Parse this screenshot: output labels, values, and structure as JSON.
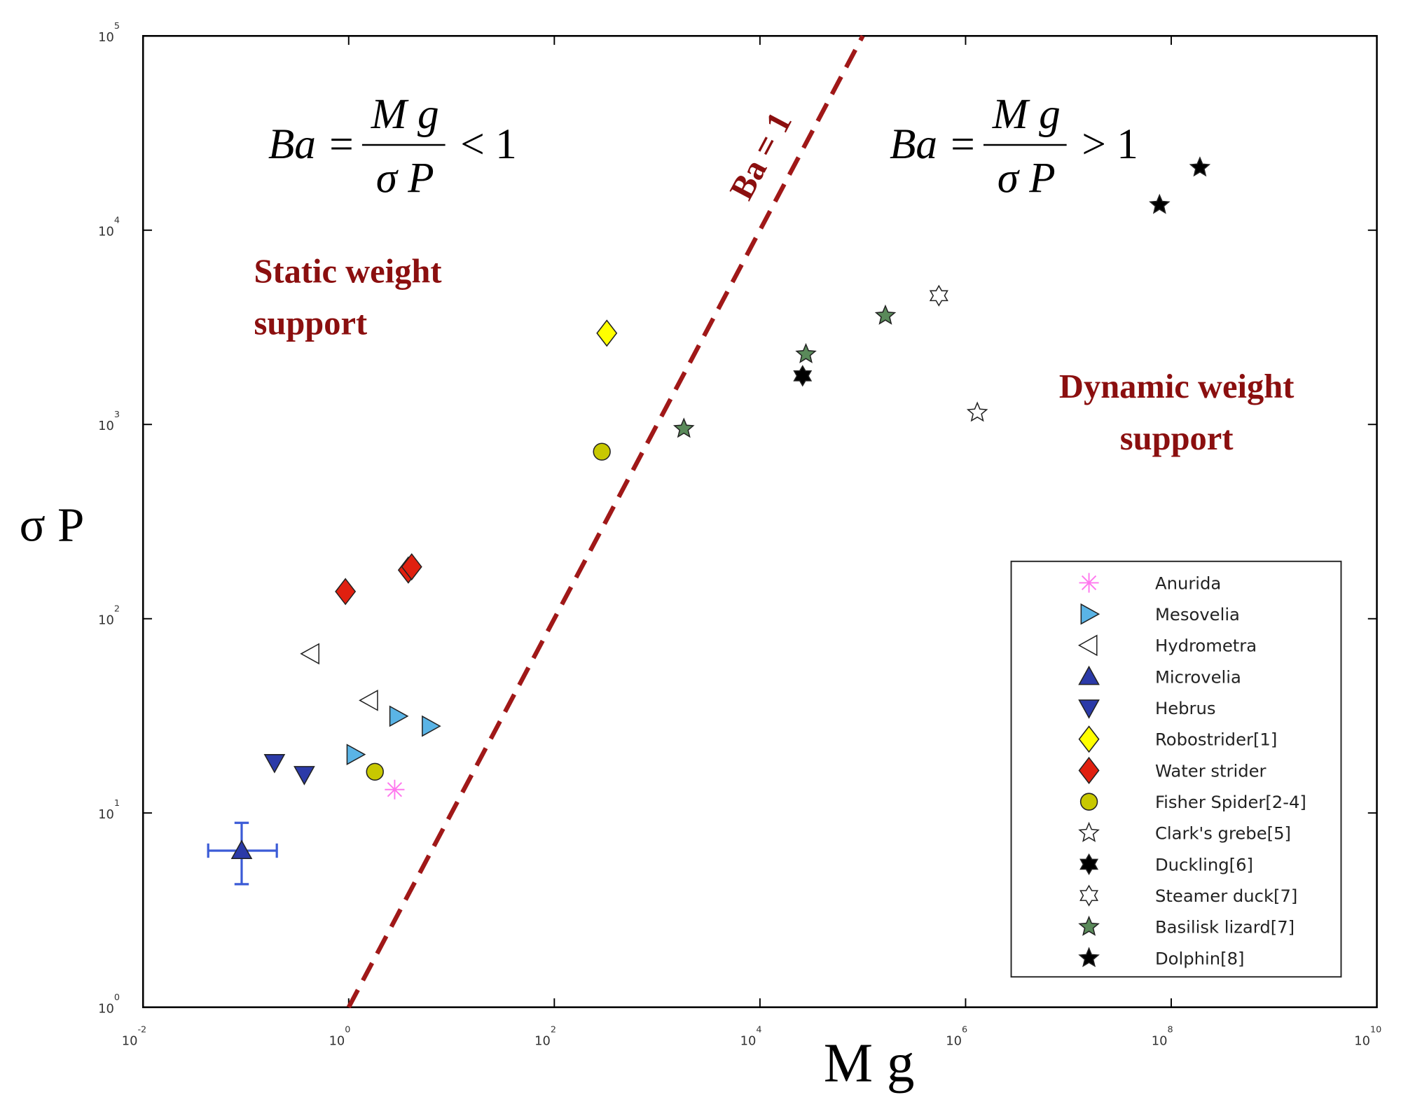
{
  "chart_data": {
    "type": "scatter",
    "x_label": "M g",
    "y_label": "σ P",
    "log_x": true,
    "log_y": true,
    "grid": false,
    "legend_position": "lower right",
    "xlim": [
      0.01,
      10000000000
    ],
    "ylim": [
      1,
      100000
    ],
    "xticks": [
      {
        "value": 0.01,
        "label": "10",
        "exponent": "-2"
      },
      {
        "value": 1,
        "label": "10",
        "exponent": "0"
      },
      {
        "value": 100,
        "label": "10",
        "exponent": "2"
      },
      {
        "value": 10000,
        "label": "10",
        "exponent": "4"
      },
      {
        "value": 1000000,
        "label": "10",
        "exponent": "6"
      },
      {
        "value": 100000000,
        "label": "10",
        "exponent": "8"
      },
      {
        "value": 10000000000,
        "label": "10",
        "exponent": "10"
      }
    ],
    "yticks": [
      {
        "value": 1,
        "label": "10",
        "exponent": "0"
      },
      {
        "value": 10,
        "label": "10",
        "exponent": "1"
      },
      {
        "value": 100,
        "label": "10",
        "exponent": "2"
      },
      {
        "value": 1000,
        "label": "10",
        "exponent": "3"
      },
      {
        "value": 10000,
        "label": "10",
        "exponent": "4"
      },
      {
        "value": 100000,
        "label": "10",
        "exponent": "5"
      }
    ],
    "reference_line": {
      "label": "Ba = 1",
      "color": "#a01818",
      "x": [
        1,
        100000
      ],
      "y": [
        1,
        100000
      ]
    },
    "annotations": {
      "left_formula": {
        "lhs": "Ba =",
        "numerator": "M g",
        "denominator": "σ P",
        "relation": "< 1"
      },
      "right_formula": {
        "lhs": "Ba =",
        "numerator": "M g",
        "denominator": "σ P",
        "relation": "> 1"
      },
      "static_label": [
        "Static weight",
        "support"
      ],
      "dynamic_label": [
        "Dynamic weight",
        "support"
      ]
    },
    "series": [
      {
        "name": "Anurida",
        "marker": "asterisk",
        "color": "#ff77ee",
        "x": [
          2.8
        ],
        "values": [
          13.2
        ]
      },
      {
        "name": "Mesovelia",
        "marker": "triangle-right",
        "color": "#5ab4e6",
        "x": [
          1.15,
          3.0,
          6.2
        ],
        "values": [
          20,
          31.5,
          28
        ]
      },
      {
        "name": "Hydrometra",
        "marker": "triangle-left",
        "color": "#ffffff",
        "x": [
          0.43,
          1.6
        ],
        "values": [
          66,
          38
        ]
      },
      {
        "name": "Microvelia",
        "marker": "triangle-up",
        "color": "#2b3aa8",
        "x": [
          0.091
        ],
        "values": [
          6.4
        ],
        "error_x": [
          [
            0.043,
            0.2
          ]
        ],
        "error_y": [
          [
            4.3,
            8.9
          ]
        ]
      },
      {
        "name": "Hebrus",
        "marker": "triangle-down",
        "color": "#2b3aa8",
        "x": [
          0.19,
          0.37
        ],
        "values": [
          18.2,
          15.8
        ]
      },
      {
        "name": "Robostrider[1]",
        "marker": "diamond",
        "color": "#ffff00",
        "x": [
          324
        ],
        "values": [
          2950
        ]
      },
      {
        "name": "Water strider",
        "marker": "diamond",
        "color": "#e02010",
        "x": [
          0.93,
          3.8,
          4.1
        ],
        "values": [
          138,
          178,
          185
        ]
      },
      {
        "name": "Fisher Spider[2-4]",
        "marker": "circle",
        "color": "#c8c800",
        "x": [
          1.8,
          290
        ],
        "values": [
          16.3,
          724
        ]
      },
      {
        "name": "Clark's grebe[5]",
        "marker": "star5",
        "color": "#ffffff",
        "x": [
          1300000
        ],
        "values": [
          1150
        ]
      },
      {
        "name": "Duckling[6]",
        "marker": "star6",
        "color": "#000000",
        "x": [
          26000
        ],
        "values": [
          1780
        ]
      },
      {
        "name": "Steamer duck[7]",
        "marker": "star6",
        "color": "#ffffff",
        "x": [
          550000
        ],
        "values": [
          4600
        ]
      },
      {
        "name": "Basilisk lizard[7]",
        "marker": "star5",
        "color": "#5a8a5a",
        "x": [
          1820,
          28000,
          166000
        ],
        "values": [
          950,
          2300,
          3630
        ]
      },
      {
        "name": "Dolphin[8]",
        "marker": "star5",
        "color": "#000000",
        "x": [
          77000000,
          190000000
        ],
        "values": [
          13500,
          21000
        ]
      }
    ]
  }
}
